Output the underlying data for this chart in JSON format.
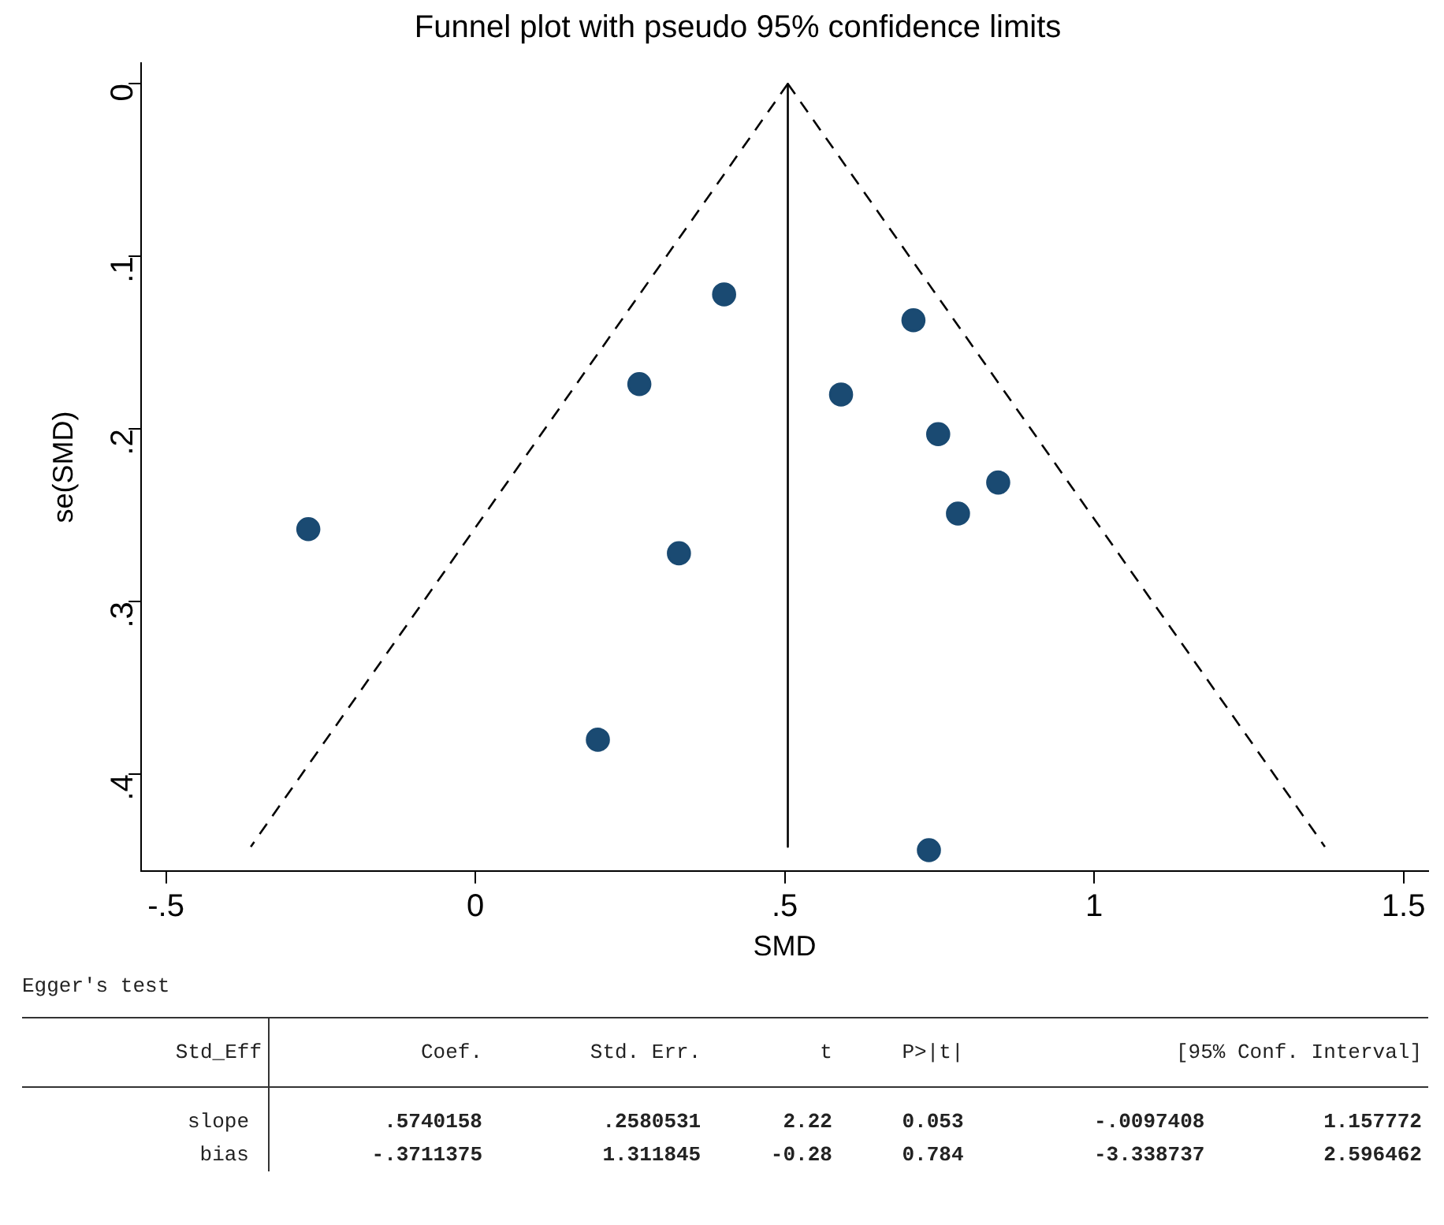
{
  "chart_data": {
    "type": "scatter",
    "title": "Funnel plot with pseudo 95% confidence limits",
    "xlabel": "SMD",
    "ylabel": "se(SMD)",
    "xlim": [
      -0.54,
      1.54
    ],
    "xticks": [
      {
        "value": -0.5,
        "label": "-.5"
      },
      0,
      {
        "value": 0.5,
        "label": ".5"
      },
      1,
      1.5
    ],
    "ylim": [
      0.456,
      -0.012
    ],
    "yticks": [
      0,
      {
        "value": 0.1,
        "label": ".1"
      },
      {
        "value": 0.2,
        "label": ".2"
      },
      {
        "value": 0.3,
        "label": ".3"
      },
      {
        "value": 0.4,
        "label": ".4"
      }
    ],
    "grid": false,
    "legend": false,
    "series": [
      {
        "type": "line",
        "color": "#000000",
        "line_style": "dashed",
        "marker": "none",
        "x": [
          0.505,
          -0.363
        ],
        "values": [
          0,
          0.442
        ]
      },
      {
        "type": "line",
        "color": "#000000",
        "line_style": "dashed",
        "marker": "none",
        "x": [
          0.505,
          1.373
        ],
        "values": [
          0,
          0.442
        ]
      },
      {
        "type": "line",
        "color": "#000000",
        "line_style": "solid",
        "marker": "none",
        "x": [
          0.505,
          0.505
        ],
        "values": [
          0,
          0.442
        ]
      },
      {
        "type": "scatter",
        "color": "#1a4a72",
        "marker": "circle",
        "x": [
          0.402,
          0.708,
          0.265,
          0.591,
          0.748,
          0.845,
          0.78,
          -0.27,
          0.329,
          0.198,
          0.733
        ],
        "values": [
          0.122,
          0.137,
          0.174,
          0.18,
          0.203,
          0.231,
          0.249,
          0.258,
          0.272,
          0.38,
          0.444
        ]
      }
    ],
    "annotations": [
      "Egger's test",
      "Std_Eff   Coef.   Std. Err.   t   P>|t|   [95% Conf. Interval]",
      "slope   .5740158   .2580531   2.22   0.053   -.0097408   1.157772",
      "bias   -.3711375   1.311845   -0.28   0.784   -3.338737   2.596462"
    ]
  }
}
